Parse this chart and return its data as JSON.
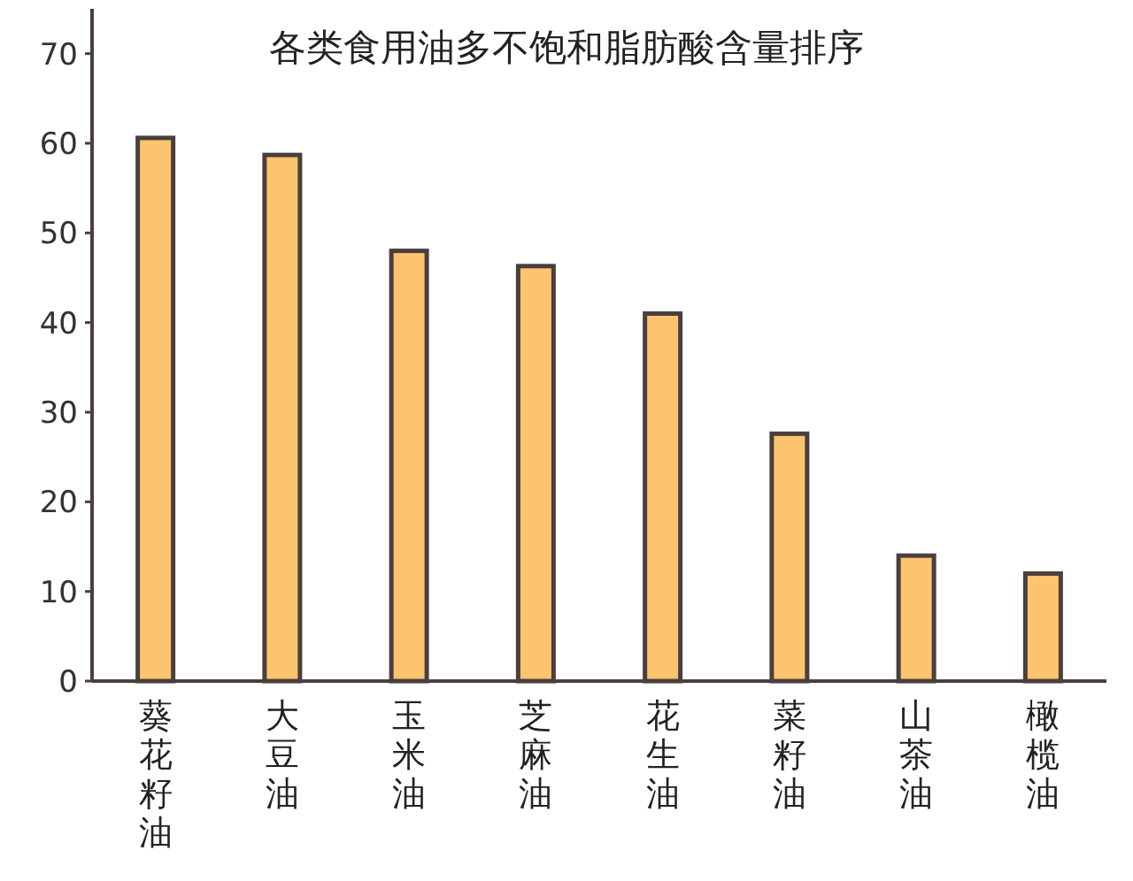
{
  "chart_data": {
    "type": "bar",
    "title": "各类食用油多不饱和脂肪酸含量排序",
    "categories": [
      "葵花籽油",
      "大豆油",
      "玉米油",
      "芝麻油",
      "花生油",
      "菜籽油",
      "山茶油",
      "橄榄油"
    ],
    "values": [
      60.6,
      58.7,
      48,
      46.3,
      41,
      27.6,
      14,
      12
    ],
    "color": "#fcc46e",
    "ylim": [
      0,
      75
    ],
    "yticks": [
      0,
      10,
      20,
      30,
      40,
      50,
      60,
      70
    ],
    "grid": false
  }
}
